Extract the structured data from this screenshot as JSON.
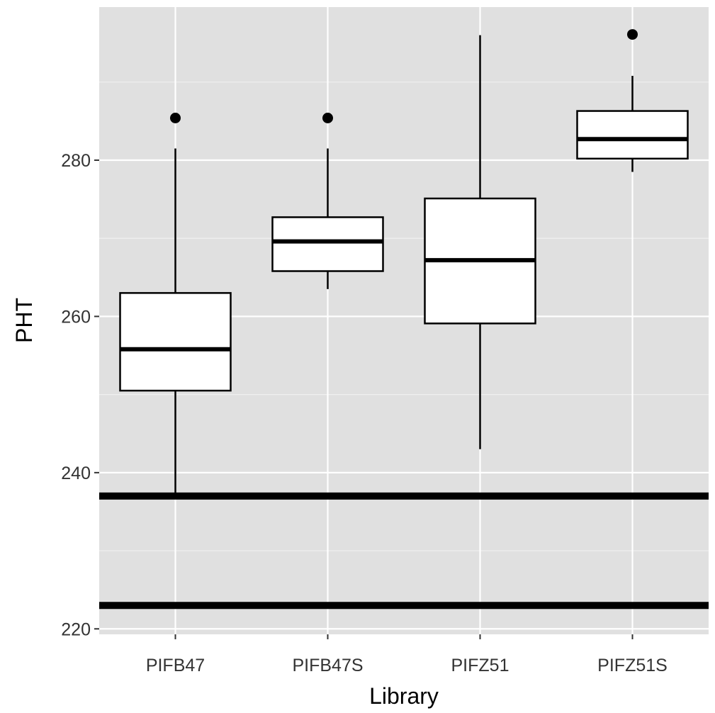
{
  "chart_data": {
    "type": "boxplot",
    "xlabel": "Library",
    "ylabel": "PHT",
    "categories": [
      "PIFB47",
      "PIFB47S",
      "PIFZ51",
      "PIFZ51S"
    ],
    "y_ticks": [
      220,
      240,
      260,
      280
    ],
    "ylim": [
      219.3,
      299.6
    ],
    "grid": true,
    "boxes": [
      {
        "category": "PIFB47",
        "whisker_low": 237.0,
        "q1": 250.5,
        "median": 255.8,
        "q3": 263.0,
        "whisker_high": 281.5,
        "outliers": [
          285.4
        ]
      },
      {
        "category": "PIFB47S",
        "whisker_low": 263.5,
        "q1": 265.8,
        "median": 269.6,
        "q3": 272.7,
        "whisker_high": 281.5,
        "outliers": [
          285.4
        ]
      },
      {
        "category": "PIFZ51",
        "whisker_low": 243.0,
        "q1": 259.1,
        "median": 267.2,
        "q3": 275.1,
        "whisker_high": 296.0,
        "outliers": []
      },
      {
        "category": "PIFZ51S",
        "whisker_low": 278.5,
        "q1": 280.2,
        "median": 282.7,
        "q3": 286.3,
        "whisker_high": 290.8,
        "outliers": [
          296.1
        ]
      }
    ],
    "hlines": [
      237.0,
      223.0
    ],
    "colors": {
      "panel": "#e0e0e0",
      "grid_major": "#ffffff",
      "grid_minor": "#f0f0f0",
      "box_fill": "#ffffff",
      "ink": "#000000"
    }
  }
}
